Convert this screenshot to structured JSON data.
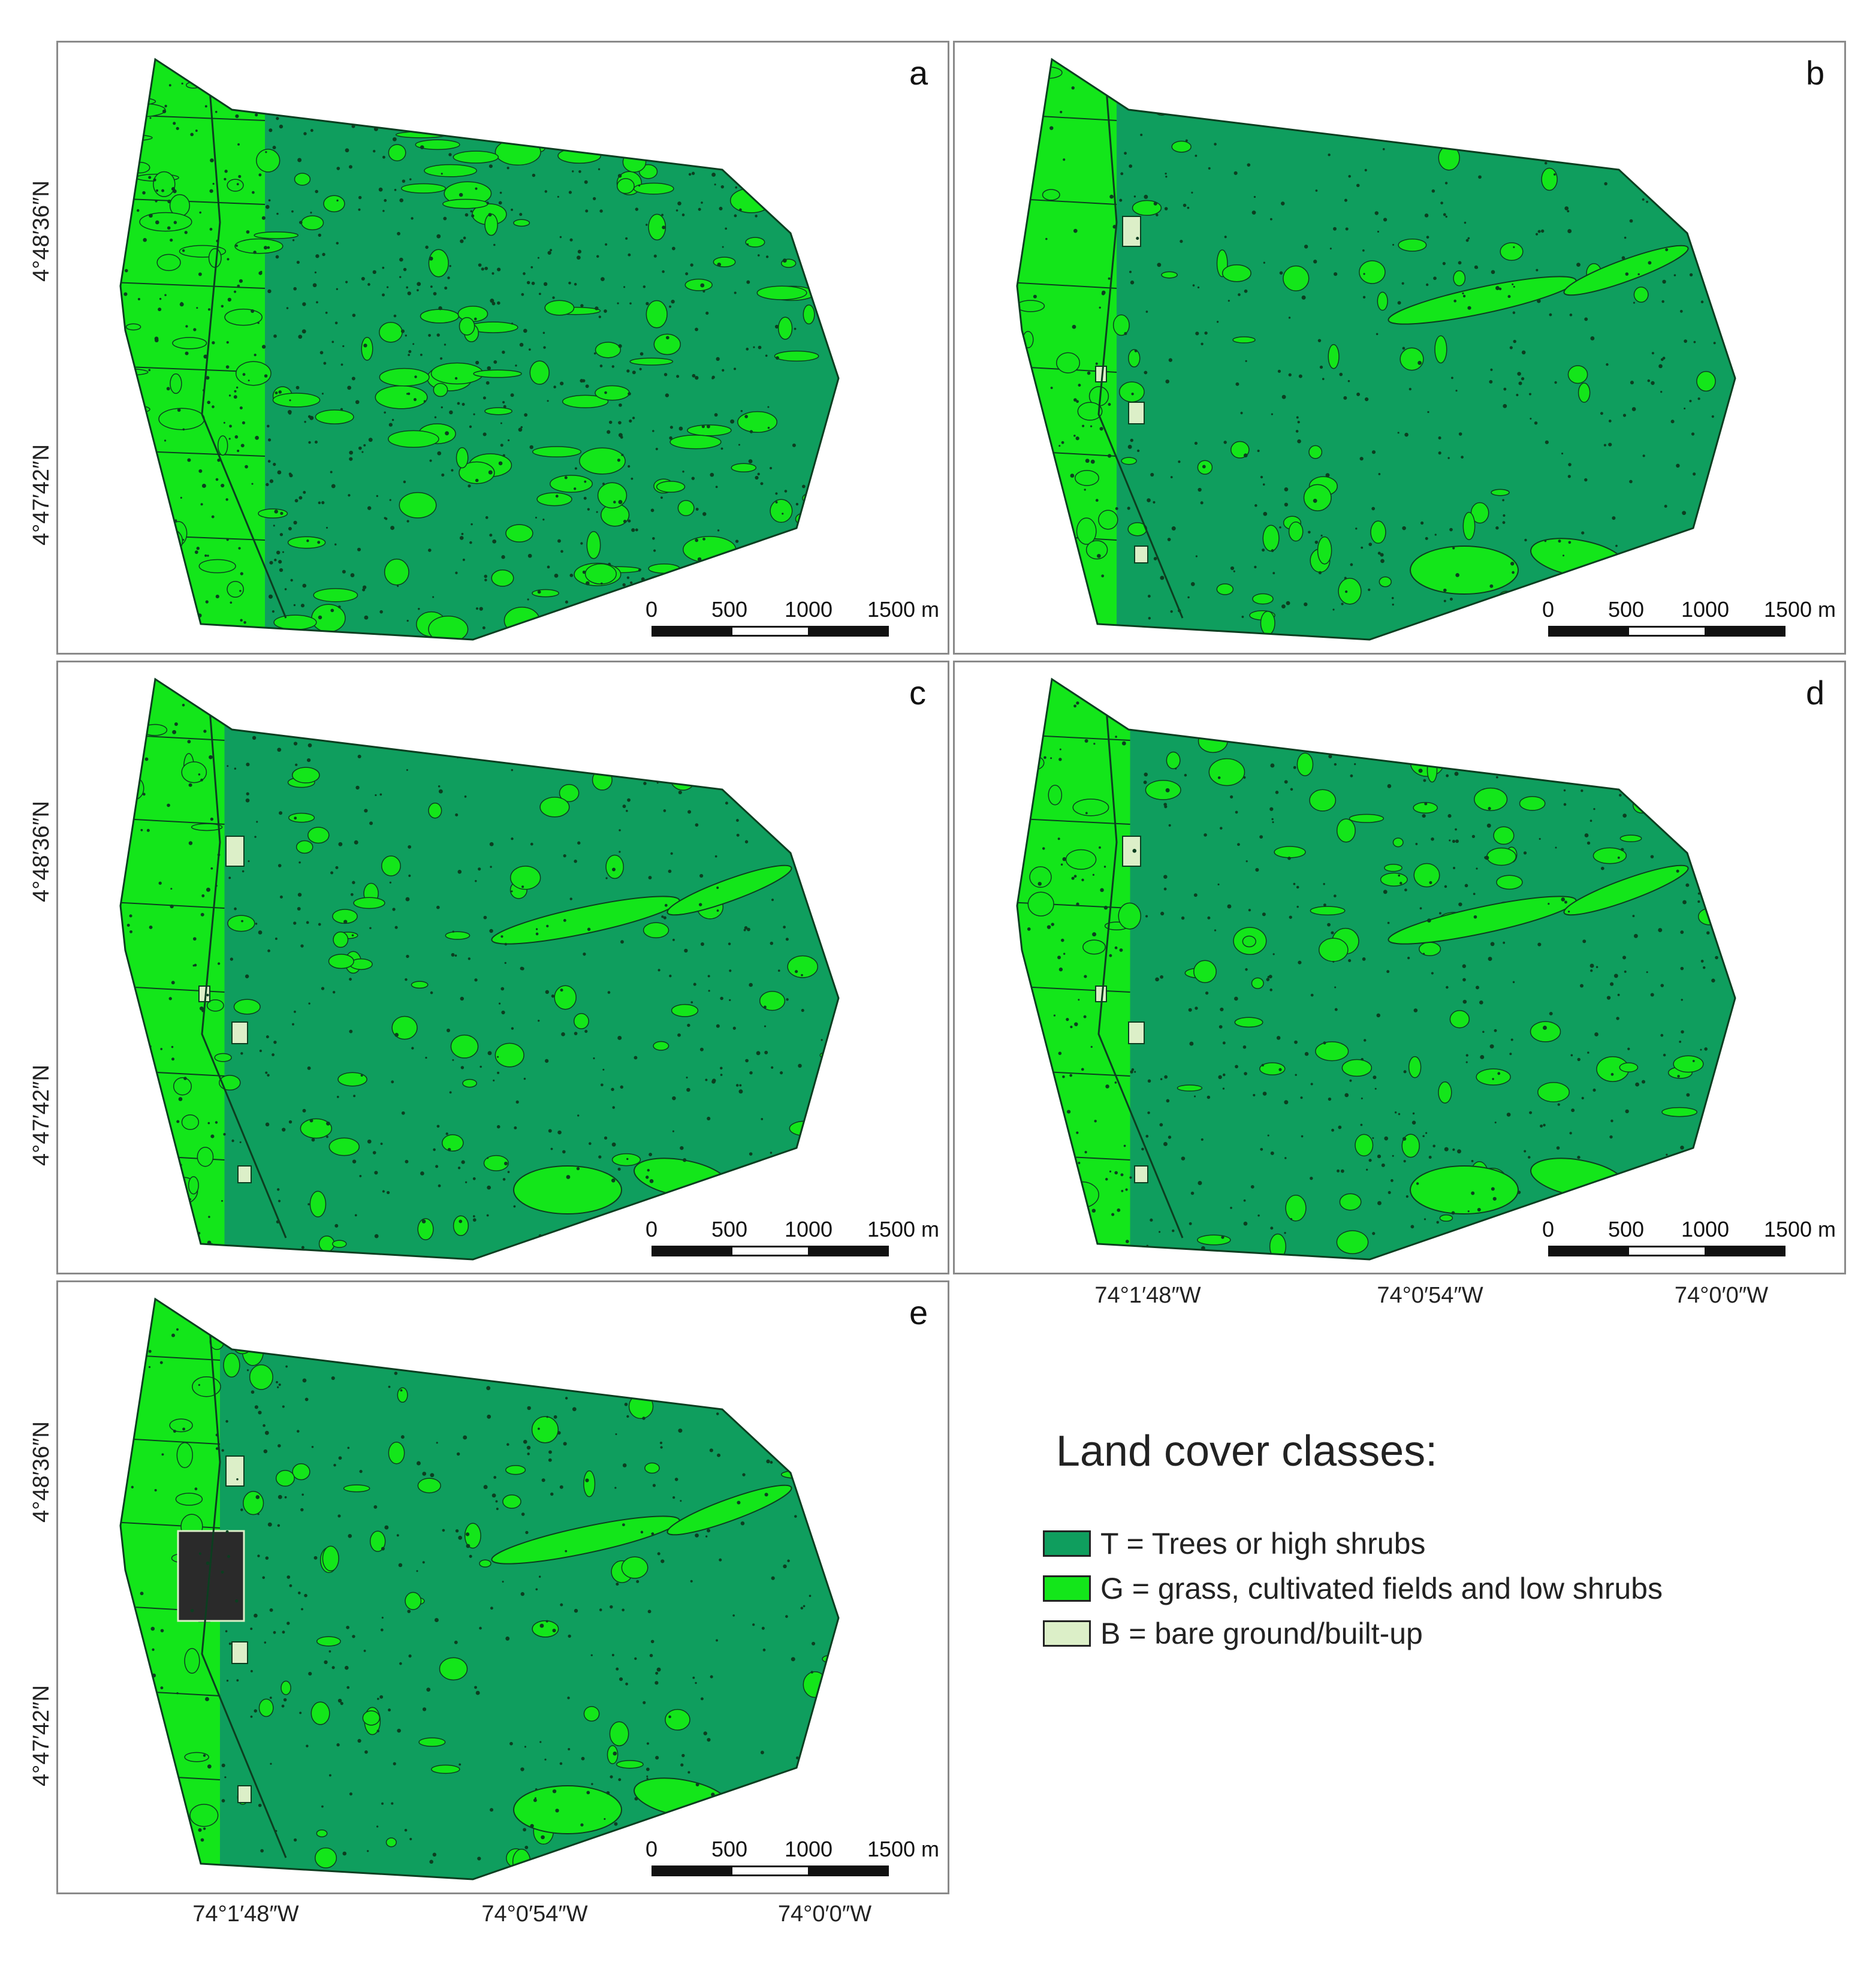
{
  "colors": {
    "trees": "#0f9e5e",
    "grass": "#13e61a",
    "bare": "#dcefc8",
    "outline": "#0c3e20"
  },
  "panels": [
    {
      "letter": "a",
      "grass_level": 0.9
    },
    {
      "letter": "b",
      "grass_level": 0.4
    },
    {
      "letter": "c",
      "grass_level": 0.45
    },
    {
      "letter": "d",
      "grass_level": 0.55
    },
    {
      "letter": "e",
      "grass_level": 0.4
    }
  ],
  "scalebar": {
    "ticks": [
      "0",
      "500",
      "1000",
      "1500 m"
    ]
  },
  "lat_labels": [
    "4°48′36″N",
    "4°47′42″N"
  ],
  "lon_labels": [
    "74°1′48″W",
    "74°0′54″W",
    "74°0′0″W"
  ],
  "legend": {
    "title": "Land cover classes:",
    "items": [
      {
        "label": "T = Trees or high shrubs",
        "color_key": "trees"
      },
      {
        "label": "G = grass, cultivated fields and low shrubs",
        "color_key": "grass"
      },
      {
        "label": "B = bare ground/built-up",
        "color_key": "bare"
      }
    ]
  }
}
